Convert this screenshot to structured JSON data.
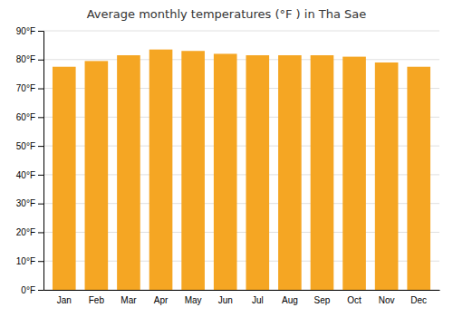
{
  "chart_data": {
    "type": "bar",
    "title": "Average monthly temperatures (°F ) in Tha Sae",
    "categories": [
      "Jan",
      "Feb",
      "Mar",
      "Apr",
      "May",
      "Jun",
      "Jul",
      "Aug",
      "Sep",
      "Oct",
      "Nov",
      "Dec"
    ],
    "values": [
      77.5,
      79.5,
      81.5,
      83.5,
      83.0,
      82.0,
      81.5,
      81.5,
      81.5,
      81.0,
      79.0,
      77.5
    ],
    "color": "#F5A623",
    "ylim": [
      0,
      90
    ],
    "yticks": [
      {
        "value": 0,
        "label": "0°F"
      },
      {
        "value": 10,
        "label": "10°F"
      },
      {
        "value": 20,
        "label": "20°F"
      },
      {
        "value": 30,
        "label": "30°F"
      },
      {
        "value": 40,
        "label": "40°F"
      },
      {
        "value": 50,
        "label": "50°F"
      },
      {
        "value": 60,
        "label": "60°F"
      },
      {
        "value": 70,
        "label": "70°F"
      },
      {
        "value": 80,
        "label": "80°F"
      },
      {
        "value": 90,
        "label": "90°F"
      }
    ],
    "grid": true
  }
}
